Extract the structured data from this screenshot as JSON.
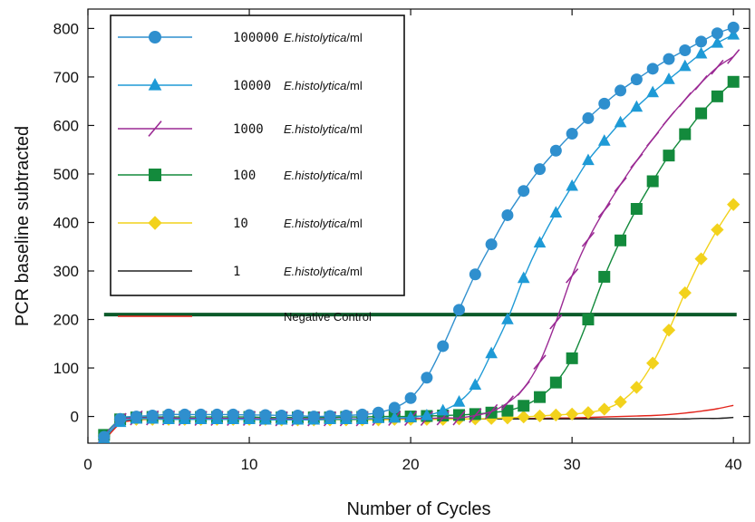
{
  "chart_data": {
    "type": "line",
    "xlabel": "Number of Cycles",
    "ylabel": "PCR baseline subtracted",
    "xlim": [
      0,
      41
    ],
    "ylim": [
      -55,
      840
    ],
    "xticks": [
      0,
      10,
      20,
      30,
      40
    ],
    "yticks": [
      0,
      100,
      200,
      300,
      400,
      500,
      600,
      700,
      800
    ],
    "threshold": {
      "value": 210,
      "color": "#0b5a2a"
    },
    "legend_position": "top-left",
    "x": [
      1,
      2,
      3,
      4,
      5,
      6,
      7,
      8,
      9,
      10,
      11,
      12,
      13,
      14,
      15,
      16,
      17,
      18,
      19,
      20,
      21,
      22,
      23,
      24,
      25,
      26,
      27,
      28,
      29,
      30,
      31,
      32,
      33,
      34,
      35,
      36,
      37,
      38,
      39,
      40
    ],
    "series": [
      {
        "count": "100000",
        "name": "E.histolytica",
        "unit": "/ml",
        "color": "#2f8fce",
        "marker": "circle",
        "values": [
          -42,
          -5,
          0,
          2,
          4,
          4,
          4,
          4,
          4,
          3,
          3,
          2,
          2,
          0,
          1,
          2,
          4,
          8,
          18,
          38,
          80,
          145,
          220,
          293,
          355,
          415,
          465,
          510,
          548,
          583,
          615,
          645,
          672,
          695,
          717,
          737,
          755,
          773,
          790,
          802
        ]
      },
      {
        "count": "10000",
        "name": "E.histolytica",
        "unit": "/ml",
        "color": "#1e9ad6",
        "marker": "triangle",
        "values": [
          -45,
          -12,
          -5,
          -5,
          -6,
          -6,
          -6,
          -6,
          -6,
          -6,
          -7,
          -7,
          -7,
          -7,
          -6,
          -6,
          -6,
          -4,
          -3,
          -2,
          2,
          12,
          30,
          65,
          130,
          200,
          285,
          358,
          420,
          475,
          528,
          568,
          606,
          638,
          668,
          695,
          722,
          748,
          770,
          787
        ]
      },
      {
        "count": "1000",
        "name": "E.histolytica",
        "unit": "/ml",
        "color": "#9b2a94",
        "marker": "cross",
        "values": [
          -40,
          -8,
          -3,
          -3,
          -3,
          -4,
          -4,
          -4,
          -4,
          -4,
          -5,
          -5,
          -5,
          -5,
          -5,
          -5,
          -5,
          -4,
          -4,
          -4,
          -4,
          -3,
          -3,
          2,
          10,
          28,
          58,
          112,
          195,
          290,
          365,
          425,
          478,
          527,
          572,
          615,
          653,
          688,
          720,
          742
        ]
      },
      {
        "count": "100",
        "name": "E.histolytica",
        "unit": "/ml",
        "color": "#138a3c",
        "marker": "square",
        "values": [
          -38,
          -6,
          -2,
          -1,
          -1,
          -1,
          -1,
          -1,
          -1,
          -1,
          -2,
          -2,
          -2,
          -2,
          -2,
          -1,
          -1,
          0,
          0,
          0,
          1,
          2,
          3,
          5,
          8,
          12,
          22,
          40,
          70,
          120,
          200,
          288,
          363,
          428,
          485,
          538,
          582,
          625,
          660,
          690
        ]
      },
      {
        "count": "10",
        "name": "E.histolytica",
        "unit": "/ml",
        "color": "#f2d21c",
        "marker": "diamond",
        "values": [
          -40,
          -6,
          -6,
          -6,
          -6,
          -6,
          -6,
          -6,
          -6,
          -6,
          -6,
          -7,
          -7,
          -7,
          -7,
          -7,
          -7,
          -7,
          -6,
          -6,
          -6,
          -6,
          -5,
          -5,
          -4,
          -3,
          -1,
          1,
          3,
          5,
          8,
          15,
          30,
          60,
          110,
          178,
          255,
          325,
          385,
          437
        ]
      },
      {
        "count": "1",
        "name": "E.histolytica",
        "unit": "/ml",
        "color": "#222222",
        "marker": "none",
        "values": [
          -45,
          -12,
          -6,
          -5,
          -5,
          -5,
          -5,
          -5,
          -5,
          -5,
          -5,
          -5,
          -5,
          -5,
          -5,
          -5,
          -5,
          -5,
          -5,
          -5,
          -5,
          -5,
          -5,
          -5,
          -5,
          -5,
          -5,
          -5,
          -5,
          -5,
          -5,
          -5,
          -5,
          -5,
          -5,
          -5,
          -5,
          -4,
          -4,
          -2
        ]
      },
      {
        "name": "Negative Control",
        "color": "#e2231a",
        "marker": "none",
        "values": [
          -50,
          -15,
          -8,
          -6,
          -5,
          -5,
          -5,
          -5,
          -5,
          -5,
          -5,
          -5,
          -5,
          -5,
          -5,
          -5,
          -5,
          -5,
          -5,
          -5,
          -5,
          -5,
          -5,
          -5,
          -5,
          -5,
          -4,
          -4,
          -3,
          -3,
          -2,
          -1,
          0,
          1,
          2,
          4,
          7,
          11,
          16,
          23
        ]
      }
    ]
  }
}
